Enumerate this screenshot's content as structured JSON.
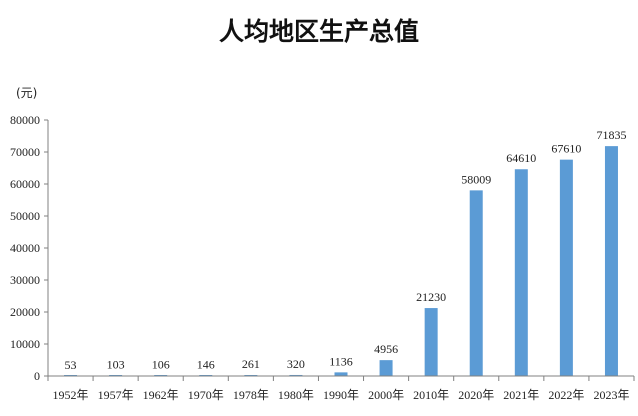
{
  "chart_data": {
    "type": "bar",
    "title": "人均地区生产总值",
    "unit": "(元)",
    "categories": [
      "1952年",
      "1957年",
      "1962年",
      "1970年",
      "1978年",
      "1980年",
      "1990年",
      "2000年",
      "2010年",
      "2020年",
      "2021年",
      "2022年",
      "2023年"
    ],
    "values": [
      53,
      103,
      106,
      146,
      261,
      320,
      1136,
      4956,
      21230,
      58009,
      64610,
      67610,
      71835
    ],
    "data_labels": [
      "53",
      "103",
      "106",
      "146",
      "261",
      "320",
      "1136",
      "4956",
      "21230",
      "58009",
      "64610",
      "67610",
      "71835"
    ],
    "ylim": [
      0,
      80000
    ],
    "yticks": [
      0,
      10000,
      20000,
      30000,
      40000,
      50000,
      60000,
      70000,
      80000
    ],
    "ytick_labels": [
      "0",
      "10000",
      "20000",
      "30000",
      "40000",
      "50000",
      "60000",
      "70000",
      "80000"
    ],
    "grid": false,
    "bar_color": "#5B9BD5",
    "axis_color": "#808080"
  }
}
